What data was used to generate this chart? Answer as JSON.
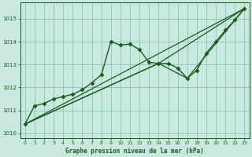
{
  "background_color": "#c8e8e0",
  "plot_bg_color": "#c8e8e0",
  "line_color": "#1a5c1a",
  "grid_color": "#7dbfaa",
  "text_color": "#1a5c1a",
  "xlabel": "Graphe pression niveau de la mer (hPa)",
  "ylim": [
    1009.8,
    1015.7
  ],
  "xlim": [
    -0.5,
    23.5
  ],
  "yticks": [
    1010,
    1011,
    1012,
    1013,
    1014,
    1015
  ],
  "xticks": [
    0,
    1,
    2,
    3,
    4,
    5,
    6,
    7,
    8,
    9,
    10,
    11,
    12,
    13,
    14,
    15,
    16,
    17,
    18,
    19,
    20,
    21,
    22,
    23
  ],
  "series": [
    {
      "x": [
        0,
        1,
        2,
        3,
        4,
        5,
        6,
        7,
        8,
        9,
        10,
        11,
        12,
        13,
        14,
        15,
        16,
        17,
        18,
        19,
        20,
        21,
        22,
        23
      ],
      "y": [
        1010.4,
        1011.2,
        1011.3,
        1011.5,
        1011.6,
        1011.7,
        1011.9,
        1012.2,
        1012.55,
        1014.0,
        1013.85,
        1013.9,
        1013.65,
        1013.1,
        1013.05,
        1013.05,
        1012.85,
        1012.4,
        1012.75,
        1013.5,
        1014.0,
        1014.5,
        1014.95,
        1015.45
      ],
      "marker": "D",
      "markersize": 2.5,
      "linewidth": 1.0
    },
    {
      "x": [
        0,
        23
      ],
      "y": [
        1010.4,
        1015.45
      ],
      "marker": null,
      "linewidth": 0.9
    },
    {
      "x": [
        0,
        14,
        23
      ],
      "y": [
        1010.4,
        1013.05,
        1015.45
      ],
      "marker": null,
      "linewidth": 0.9
    },
    {
      "x": [
        0,
        14,
        17,
        23
      ],
      "y": [
        1010.4,
        1013.05,
        1012.4,
        1015.45
      ],
      "marker": null,
      "linewidth": 0.9
    }
  ]
}
